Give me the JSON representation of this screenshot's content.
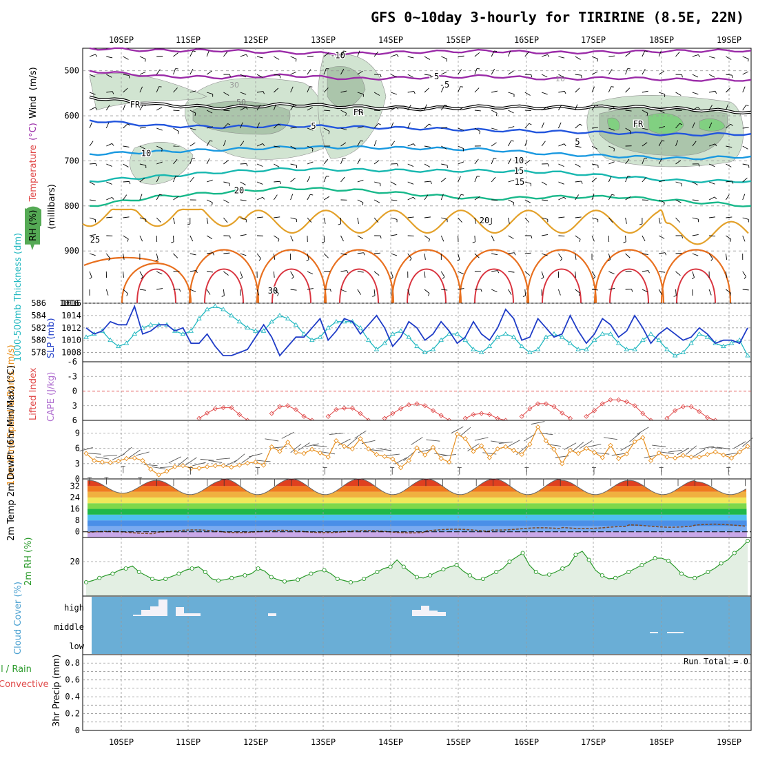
{
  "title": "GFS 0~10day 3-hourly for TIRIRINE (8.5E, 22N)",
  "dates": [
    "10SEP",
    "11SEP",
    "12SEP",
    "13SEP",
    "14SEP",
    "15SEP",
    "16SEP",
    "17SEP",
    "18SEP",
    "19SEP"
  ],
  "colors": {
    "rh_fill": "#cfe3cf",
    "rh_dark": "#a9c4a9",
    "rh_high": "#7fd17f",
    "slp": "#1f3cc7",
    "thickness": "#22b8c0",
    "lifted": "#e04848",
    "wind_speed": "#e8901f",
    "rh2m": "#2a9a2a",
    "cloud_bg": "#6aaed6",
    "temp_minus5": "#9b2ca8",
    "temp_5": "#2255dd",
    "temp_10": "#1a99e0",
    "temp_15": "#19b8b0",
    "temp_20": "#18b88a",
    "temp_25": "#e3a12a",
    "temp_30": "#e8701f",
    "temp_35": "#d9343f"
  },
  "chart_data": [
    {
      "id": "upper_air",
      "type": "contour",
      "ylabel_parts": [
        "RH (%)",
        "Temperature",
        "(°C)",
        "Wind",
        "(m/s)"
      ],
      "ylabel_axis": "(millibars)",
      "yticks": [
        500,
        600,
        700,
        800,
        900,
        1016
      ],
      "ylim": [
        1016,
        450
      ],
      "contour_labels": [
        "-10",
        "-5",
        "FR",
        "5",
        "10",
        "15",
        "20",
        "25",
        "30"
      ],
      "rh_labels": [
        "30",
        "50",
        "10"
      ],
      "isotherms": [
        {
          "label": "-10",
          "p": [
            450,
            455,
            455,
            460,
            462,
            458,
            456,
            460,
            458,
            456,
            455
          ]
        },
        {
          "label": "-5",
          "p": [
            500,
            512,
            515,
            510,
            518,
            515,
            512,
            518,
            516,
            520,
            520
          ]
        },
        {
          "label": "FR",
          "p": [
            558,
            575,
            582,
            575,
            580,
            584,
            580,
            582,
            580,
            585,
            592
          ]
        },
        {
          "label": "5",
          "p": [
            610,
            622,
            625,
            622,
            625,
            628,
            632,
            635,
            638,
            642,
            640
          ]
        },
        {
          "label": "10",
          "p": [
            685,
            680,
            675,
            670,
            670,
            672,
            675,
            685,
            690,
            695,
            690
          ]
        },
        {
          "label": "15",
          "p": [
            745,
            735,
            725,
            718,
            720,
            722,
            722,
            725,
            735,
            745,
            745
          ]
        },
        {
          "label": "20",
          "p": [
            800,
            780,
            770,
            760,
            765,
            775,
            785,
            780,
            780,
            790,
            800
          ]
        }
      ]
    },
    {
      "id": "slp",
      "type": "line",
      "ylabel_left": "1000-500mb Thickness (dm)",
      "ylabel_right": "SLP (mb)",
      "thickness_ticks": [
        586,
        584,
        582,
        580,
        578
      ],
      "slp_ticks": [
        1016,
        1014,
        1012,
        1010,
        1008
      ],
      "slp_range": [
        1006.5,
        1016
      ],
      "thickness_range": [
        576.5,
        586
      ],
      "slp": [
        1012,
        1011,
        1011.5,
        1013,
        1012.5,
        1012.5,
        1015.5,
        1011,
        1011.5,
        1012.5,
        1012.5,
        1011.5,
        1012,
        1009.5,
        1009.5,
        1011,
        1009,
        1007.5,
        1007.5,
        1008,
        1008.5,
        1010.5,
        1012.5,
        1010.5,
        1007.5,
        1009,
        1010.5,
        1010.5,
        1012,
        1013.5,
        1010,
        1011.5,
        1013.5,
        1013,
        1011,
        1012.5,
        1014,
        1012,
        1009,
        1010.5,
        1013,
        1012,
        1010,
        1011,
        1013,
        1011.5,
        1009.5,
        1010.5,
        1013,
        1011,
        1010,
        1012,
        1015,
        1013.5,
        1010,
        1010.5,
        1013.5,
        1012,
        1010.5,
        1011,
        1014,
        1011.5,
        1009.5,
        1011,
        1013.5,
        1012.5,
        1010.5,
        1011.5,
        1014,
        1012,
        1009.5,
        1011,
        1012,
        1011,
        1010,
        1010.5,
        1012,
        1011,
        1009.5,
        1010,
        1010,
        1009.5,
        1012
      ],
      "thickness": [
        580.5,
        581,
        581.5,
        580,
        579,
        579.5,
        581,
        582,
        582.5,
        582.5,
        582.5,
        581.5,
        581,
        581.5,
        583.5,
        585,
        585.5,
        585,
        584,
        583,
        582,
        581.5,
        581.5,
        583,
        584,
        583.5,
        582.5,
        581,
        580,
        580.5,
        582,
        583,
        583,
        583,
        582,
        580,
        578.5,
        579.5,
        581,
        581.5,
        580.5,
        579,
        578,
        578.5,
        580,
        581,
        581,
        580,
        578.5,
        578,
        579,
        580.5,
        581,
        580.5,
        579,
        578,
        578.5,
        580.5,
        581,
        580.5,
        579.5,
        578.5,
        578.5,
        580,
        581,
        581,
        579.5,
        578.5,
        578.5,
        580,
        581,
        580,
        578.5,
        577.5,
        578,
        579.5,
        581,
        580.5,
        579.5,
        579,
        579.5,
        580,
        577.5
      ]
    },
    {
      "id": "cape_li",
      "type": "line",
      "ylabel_left": "CAPE (J/kg)",
      "ylabel_right": "Lifted Index",
      "yticks": [
        "-6",
        "-3",
        "0",
        "3",
        "6"
      ],
      "ylim": [
        -6,
        6
      ],
      "lifted_index": [
        null,
        null,
        null,
        null,
        null,
        null,
        null,
        null,
        null,
        null,
        null,
        null,
        null,
        null,
        5.6,
        4.5,
        3.6,
        3.4,
        3.4,
        4.8,
        6,
        null,
        null,
        4.6,
        3.2,
        3.0,
        3.8,
        5.2,
        6,
        null,
        5.2,
        3.8,
        3.5,
        3.5,
        4.6,
        6,
        null,
        5.6,
        4.6,
        3.6,
        2.8,
        2.6,
        3.0,
        4.0,
        5.0,
        6,
        null,
        5.6,
        4.8,
        4.6,
        4.8,
        5.6,
        6,
        null,
        5.2,
        3.6,
        2.6,
        2.6,
        3.2,
        4.5,
        5.6,
        null,
        5.2,
        4.0,
        2.6,
        1.8,
        1.8,
        2.2,
        3.0,
        4.6,
        6,
        null,
        5.6,
        4.0,
        3.2,
        3.2,
        4.2,
        5.4,
        6,
        null,
        null,
        null,
        null
      ]
    },
    {
      "id": "wind10m",
      "type": "line",
      "ylabel": "10m Wind Speed & Barbs (m/s)",
      "yticks": [
        "0",
        "3",
        "6",
        "9"
      ],
      "ylim": [
        0,
        11.5
      ],
      "speed": [
        5,
        3.6,
        3.3,
        3.2,
        3.5,
        4,
        4.1,
        3.6,
        1.9,
        0.8,
        1.5,
        2.4,
        2.6,
        2.1,
        2.1,
        2.4,
        2.6,
        2.6,
        2.3,
        2.7,
        3.1,
        3.3,
        2.7,
        6.3,
        5.4,
        7.2,
        5.2,
        5,
        5.8,
        5.1,
        4.3,
        7.5,
        6.4,
        5.9,
        7.9,
        5.9,
        4.8,
        4.4,
        3.9,
        2.2,
        3.6,
        6.1,
        4.7,
        6.2,
        4,
        3.3,
        8.8,
        7.9,
        5.4,
        6.5,
        4.2,
        5.9,
        6.3,
        5.6,
        4.8,
        6.8,
        10.2,
        7.5,
        5.8,
        3,
        5.6,
        5,
        6,
        5.2,
        4.2,
        6.6,
        4,
        4.9,
        7.3,
        8.1,
        3.6,
        5.1,
        4.3,
        4.1,
        4.6,
        4.3,
        4.3,
        4.8,
        5.3,
        4.7,
        4.1,
        5.3,
        6.4
      ]
    },
    {
      "id": "temp2m",
      "type": "area",
      "ylabel": "2m Temp 2m DewPt (6hr Min/Max) (°C)",
      "yticks": [
        "0",
        "8",
        "16",
        "24",
        "32"
      ],
      "ylim": [
        -4,
        37
      ],
      "temp_day_max": [
        36,
        36,
        37,
        37,
        37,
        37,
        37,
        36,
        36,
        35
      ],
      "temp_night_min": [
        27,
        26,
        26,
        26,
        26,
        26,
        26,
        26,
        26,
        26
      ],
      "dewpoint": [
        -0.5,
        0.5,
        0.2,
        0.2,
        0,
        1,
        2,
        3,
        4,
        4.5
      ]
    },
    {
      "id": "rh2m",
      "type": "line",
      "ylabel": "2m RH (%)",
      "yticks": [
        "20"
      ],
      "ylim": [
        0,
        34
      ],
      "rh": [
        8,
        9,
        10.5,
        12,
        13,
        15,
        16,
        17.5,
        14,
        12,
        10,
        9,
        10,
        11.5,
        13,
        15,
        16,
        17,
        14,
        10,
        9,
        9.5,
        10.5,
        11.5,
        12,
        13,
        16,
        14.5,
        11,
        9.5,
        8.5,
        9,
        9.5,
        11.5,
        13,
        14.5,
        15,
        13,
        10,
        9,
        8,
        8.5,
        10,
        12,
        14,
        16,
        17,
        21,
        17,
        14,
        11,
        10.5,
        12,
        14,
        15.5,
        17,
        18,
        14.5,
        12,
        9.5,
        10,
        12,
        14,
        16,
        20,
        22.5,
        25,
        18,
        14,
        12,
        12.5,
        14,
        16,
        18,
        24,
        26,
        21,
        15,
        12,
        10,
        10.5,
        12,
        14,
        16,
        18,
        20,
        22,
        22,
        20.5,
        17,
        13,
        11,
        10.5,
        12,
        14,
        16,
        19,
        21,
        25,
        28,
        32
      ]
    },
    {
      "id": "cloud",
      "type": "bar",
      "ylabel": "Cloud Cover (%)",
      "levels": [
        "high",
        "middle",
        "low"
      ]
    },
    {
      "id": "precip",
      "type": "bar",
      "ylabel_left": "Total / Rain Convective",
      "ylabel": "3hr Precip (mm)",
      "yticks": [
        "0",
        "0.2",
        "0.4",
        "0.6",
        "0.8"
      ],
      "ylim": [
        0,
        0.9
      ],
      "run_total": "Run Total = 0",
      "values": []
    }
  ]
}
